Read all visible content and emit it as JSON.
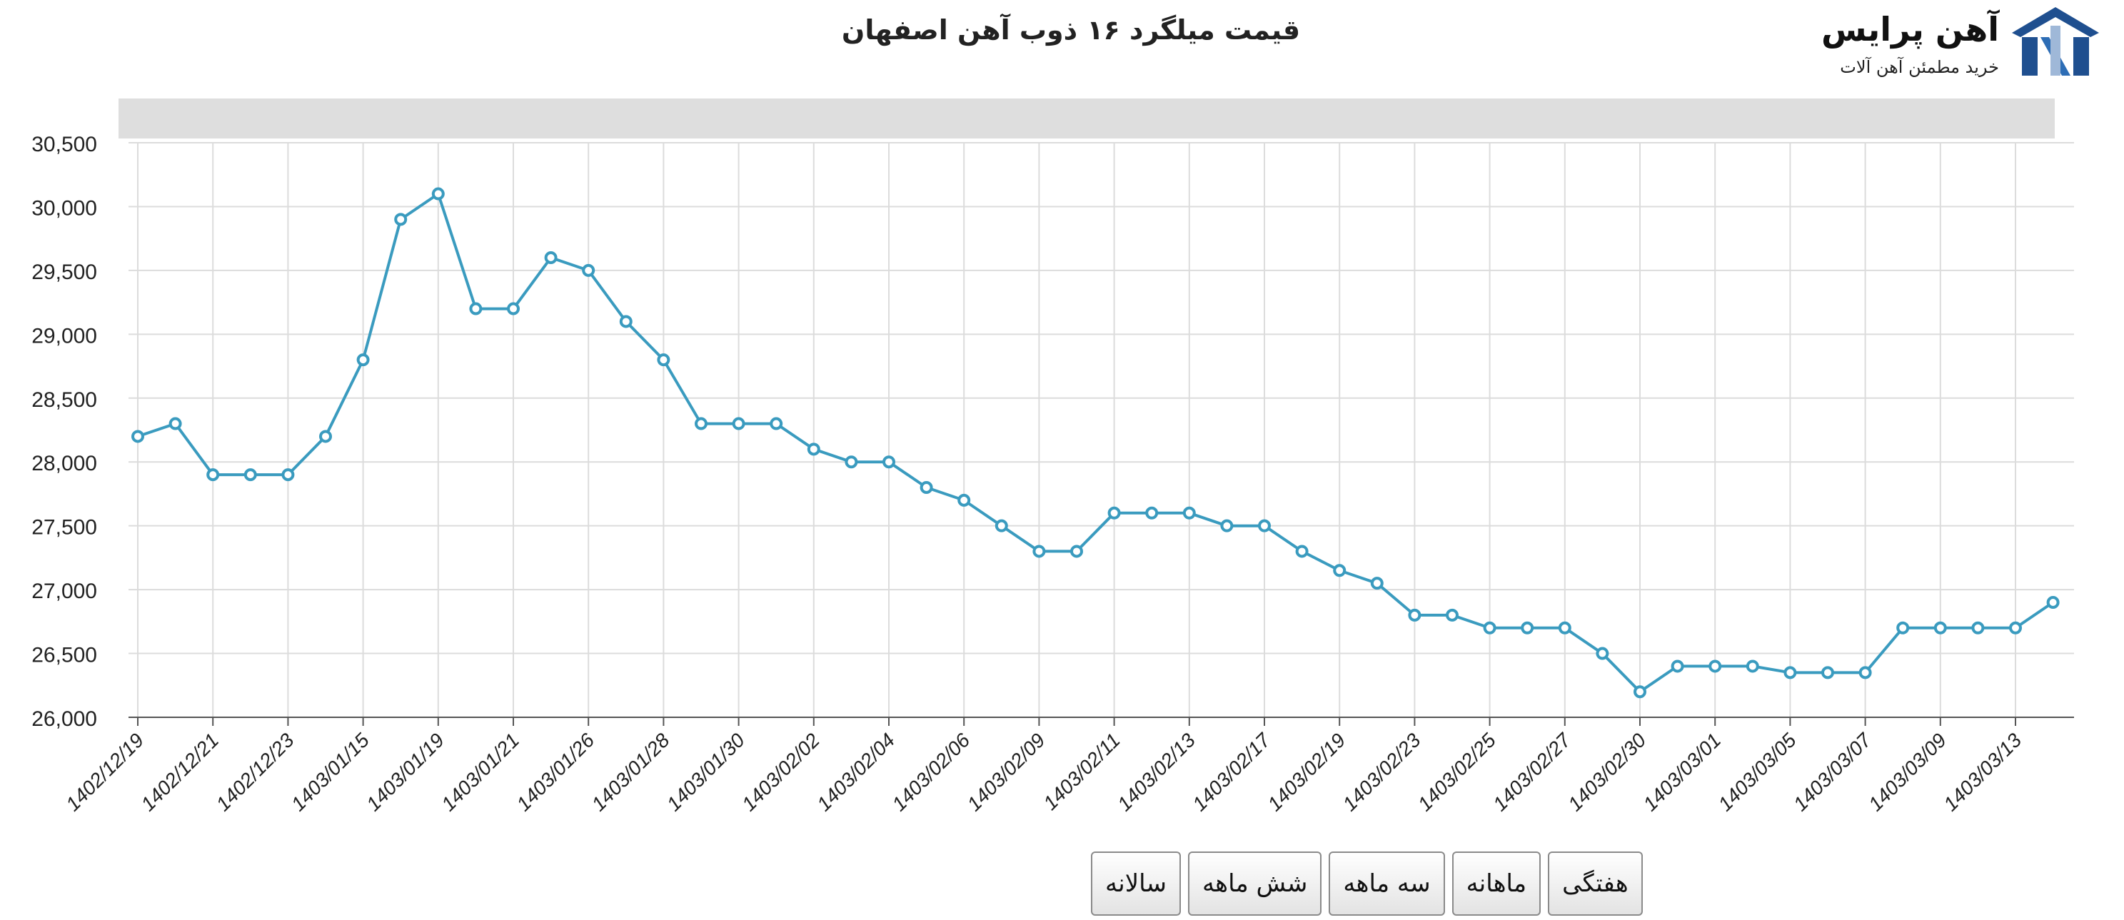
{
  "brand": {
    "name": "آهن پرایس",
    "tagline": "خرید مطمئن آهن آلات",
    "logo_icon": "house-roof-logo-icon",
    "logo_color": "#1f4f8f"
  },
  "range_buttons": [
    {
      "label": "هفتگی"
    },
    {
      "label": "ماهانه"
    },
    {
      "label": "سه ماهه"
    },
    {
      "label": "شش ماهه"
    },
    {
      "label": "سالانه"
    }
  ],
  "chart_data": {
    "type": "line",
    "title": "قیمت میلگرد ۱۶ ذوب آهن اصفهان",
    "xlabel": "",
    "ylabel": "",
    "ylim": [
      26000,
      30500
    ],
    "yticks": [
      "26,000",
      "26,500",
      "27,000",
      "27,500",
      "28,000",
      "28,500",
      "29,000",
      "29,500",
      "30,000",
      "30,500"
    ],
    "xticks": [
      "1402/12/19",
      "1402/12/21",
      "1402/12/23",
      "1403/01/15",
      "1403/01/19",
      "1403/01/21",
      "1403/01/26",
      "1403/01/28",
      "1403/01/30",
      "1403/02/02",
      "1403/02/04",
      "1403/02/06",
      "1403/02/09",
      "1403/02/11",
      "1403/02/13",
      "1403/02/17",
      "1403/02/19",
      "1403/02/23",
      "1403/02/25",
      "1403/02/27",
      "1403/02/30",
      "1403/03/01",
      "1403/03/05",
      "1403/03/07",
      "1403/03/09",
      "1403/03/13"
    ],
    "grid": true,
    "line_color": "#3a9bbf",
    "series": [
      {
        "values": [
          28200,
          28300,
          27900,
          27900,
          27900,
          28200,
          28800,
          29900,
          30100,
          29200,
          29200,
          29600,
          29500,
          29100,
          28800,
          28300,
          28300,
          28300,
          28100,
          28000,
          28000,
          27800,
          27700,
          27500,
          27300,
          27300,
          27600,
          27600,
          27600,
          27500,
          27500,
          27300,
          27150,
          27050,
          26800,
          26800,
          26700,
          26700,
          26700,
          26500,
          26200,
          26400,
          26400,
          26400,
          26350,
          26350,
          26350,
          26700,
          26700,
          26700,
          26700,
          26900
        ]
      }
    ]
  }
}
